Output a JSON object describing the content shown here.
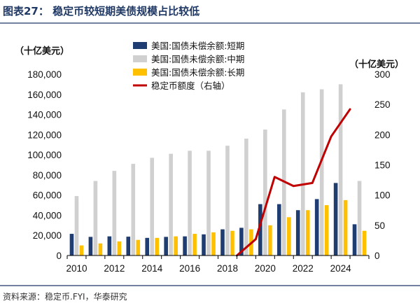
{
  "header": {
    "title": "图表27：  稳定币较短期美债规模占比较低"
  },
  "footer": {
    "source": "资料来源：稳定币.FYI，华泰研究"
  },
  "colors": {
    "short": "#1f3d70",
    "mid": "#d0d0d0",
    "long": "#ffc000",
    "line": "#c00000",
    "title": "#1f3864",
    "divider": "#1f3864"
  },
  "chart_data": {
    "type": "bar",
    "title": "稳定币较短期美债规模占比较低",
    "left_unit": "（十亿美元）",
    "right_unit": "（十亿美元）",
    "categories": [
      "2010",
      "2011",
      "2012",
      "2013",
      "2014",
      "2015",
      "2016",
      "2017",
      "2018",
      "2019",
      "2020",
      "2021",
      "2022",
      "2023",
      "2024",
      "2025"
    ],
    "x_tick_labels": [
      "2010",
      "2012",
      "2014",
      "2016",
      "2018",
      "2020",
      "2022",
      "2024"
    ],
    "ylim": [
      0,
      180000
    ],
    "y_ticks": [
      "0",
      "20,000",
      "40,000",
      "60,000",
      "80,000",
      "100,000",
      "120,000",
      "140,000",
      "160,000",
      "180,000"
    ],
    "y2lim": [
      0,
      300
    ],
    "y2_ticks": [
      "0",
      "50",
      "100",
      "150",
      "200",
      "250",
      "300"
    ],
    "series": [
      {
        "name": "美国:国债未偿余额:短期",
        "kind": "bar",
        "color_key": "short",
        "values": [
          21500,
          18500,
          19000,
          18700,
          17500,
          18500,
          19000,
          21000,
          26000,
          27500,
          51000,
          51000,
          45000,
          56000,
          72000,
          31000
        ]
      },
      {
        "name": "美国:国债未偿余额:中期",
        "kind": "bar",
        "color_key": "mid",
        "values": [
          59000,
          74000,
          84000,
          91000,
          97000,
          101000,
          104000,
          104000,
          109000,
          116000,
          125000,
          145000,
          162000,
          165000,
          170000,
          74000
        ]
      },
      {
        "name": "美国:国债未偿余额:长期",
        "kind": "bar",
        "color_key": "long",
        "values": [
          10000,
          12000,
          14000,
          15500,
          17500,
          19000,
          21500,
          23000,
          24500,
          26000,
          30000,
          38000,
          45000,
          50000,
          55000,
          24500
        ]
      },
      {
        "name": "稳定币额度（右轴）",
        "kind": "line",
        "axis": "right",
        "color_key": "line",
        "x": [
          2019.0,
          2020.0,
          2021.0,
          2022.0,
          2023.0,
          2024.0,
          2025.0
        ],
        "values": [
          0,
          27,
          130,
          115,
          120,
          197,
          242
        ]
      }
    ],
    "legend_position": "top-center"
  }
}
